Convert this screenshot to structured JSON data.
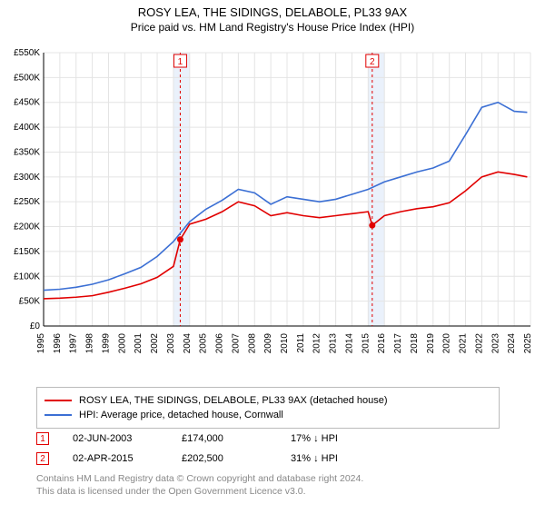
{
  "title": "ROSY LEA, THE SIDINGS, DELABOLE, PL33 9AX",
  "subtitle": "Price paid vs. HM Land Registry's House Price Index (HPI)",
  "chart": {
    "type": "line",
    "background_color": "#ffffff",
    "grid_color": "#e4e4e4",
    "axis_color": "#000000",
    "xlim": [
      1995,
      2025
    ],
    "ylim": [
      0,
      550000
    ],
    "ytick_step": 50000,
    "yticks": [
      "£0",
      "£50K",
      "£100K",
      "£150K",
      "£200K",
      "£250K",
      "£300K",
      "£350K",
      "£400K",
      "£450K",
      "£500K",
      "£550K"
    ],
    "xticks": [
      1995,
      1996,
      1997,
      1998,
      1999,
      2000,
      2001,
      2002,
      2003,
      2004,
      2005,
      2006,
      2007,
      2008,
      2009,
      2010,
      2011,
      2012,
      2013,
      2014,
      2015,
      2016,
      2017,
      2018,
      2019,
      2020,
      2021,
      2022,
      2023,
      2024,
      2025
    ],
    "xtick_label_fontsize": 10,
    "ytick_label_fontsize": 10,
    "line_width": 1.6,
    "series": [
      {
        "name": "property",
        "label": "ROSY LEA, THE SIDINGS, DELABOLE, PL33 9AX (detached house)",
        "color": "#e10000",
        "x": [
          1995,
          1996,
          1997,
          1998,
          1999,
          2000,
          2001,
          2002,
          2003,
          2003.42,
          2004,
          2005,
          2006,
          2007,
          2008,
          2009,
          2010,
          2011,
          2012,
          2013,
          2014,
          2015,
          2015.25,
          2016,
          2017,
          2018,
          2019,
          2020,
          2021,
          2022,
          2023,
          2024,
          2024.8
        ],
        "y": [
          55000,
          56000,
          58000,
          61000,
          68000,
          76000,
          85000,
          98000,
          120000,
          174000,
          205000,
          215000,
          230000,
          250000,
          242000,
          222000,
          228000,
          222000,
          218000,
          222000,
          226000,
          230000,
          202500,
          222000,
          230000,
          236000,
          240000,
          248000,
          272000,
          300000,
          310000,
          305000,
          300000
        ]
      },
      {
        "name": "hpi",
        "label": "HPI: Average price, detached house, Cornwall",
        "color": "#3b6fd4",
        "x": [
          1995,
          1996,
          1997,
          1998,
          1999,
          2000,
          2001,
          2002,
          2003,
          2004,
          2005,
          2006,
          2007,
          2008,
          2009,
          2010,
          2011,
          2012,
          2013,
          2014,
          2015,
          2016,
          2017,
          2018,
          2019,
          2020,
          2021,
          2022,
          2023,
          2024,
          2024.8
        ],
        "y": [
          72000,
          74000,
          78000,
          84000,
          93000,
          105000,
          118000,
          140000,
          170000,
          210000,
          235000,
          253000,
          275000,
          268000,
          245000,
          260000,
          255000,
          250000,
          255000,
          265000,
          275000,
          290000,
          300000,
          310000,
          318000,
          332000,
          385000,
          440000,
          450000,
          432000,
          430000
        ]
      }
    ],
    "markers": [
      {
        "index": 1,
        "label": "1",
        "color": "#e10000",
        "x": 2003.42,
        "y": 174000,
        "shade_x": [
          2003,
          2004
        ]
      },
      {
        "index": 2,
        "label": "2",
        "color": "#e10000",
        "x": 2015.25,
        "y": 202500,
        "shade_x": [
          2015,
          2016
        ]
      }
    ],
    "shade_color": "#eaf1fb",
    "marker_line_color": "#e10000",
    "marker_dot_radius": 3.5
  },
  "legend": {
    "items": [
      {
        "color": "#e10000",
        "bind": "chart.series.0.label"
      },
      {
        "color": "#3b6fd4",
        "bind": "chart.series.1.label"
      }
    ]
  },
  "sales": [
    {
      "num": "1",
      "color": "#e10000",
      "date": "02-JUN-2003",
      "price": "£174,000",
      "diff": "17% ↓ HPI"
    },
    {
      "num": "2",
      "color": "#e10000",
      "date": "02-APR-2015",
      "price": "£202,500",
      "diff": "31% ↓ HPI"
    }
  ],
  "footer": {
    "line1": "Contains HM Land Registry data © Crown copyright and database right 2024.",
    "line2": "This data is licensed under the Open Government Licence v3.0."
  }
}
